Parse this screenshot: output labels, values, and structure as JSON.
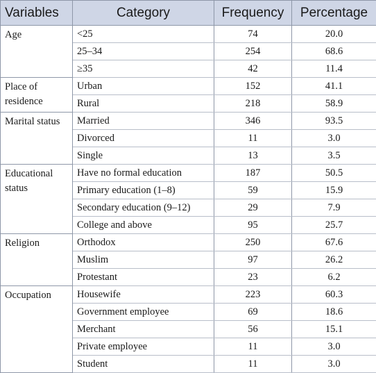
{
  "headers": [
    "Variables",
    "Category",
    "Frequency",
    "Percentage"
  ],
  "groups": [
    {
      "variable": "Age",
      "rows": [
        {
          "category": "<25",
          "frequency": "74",
          "percentage": "20.0"
        },
        {
          "category": "25–34",
          "frequency": "254",
          "percentage": "68.6"
        },
        {
          "category": "≥35",
          "frequency": "42",
          "percentage": "11.4"
        }
      ]
    },
    {
      "variable": "Place of residence",
      "rows": [
        {
          "category": "Urban",
          "frequency": "152",
          "percentage": "41.1"
        },
        {
          "category": "Rural",
          "frequency": "218",
          "percentage": "58.9"
        }
      ]
    },
    {
      "variable": "Marital status",
      "rows": [
        {
          "category": "Married",
          "frequency": "346",
          "percentage": "93.5"
        },
        {
          "category": "Divorced",
          "frequency": "11",
          "percentage": "3.0"
        },
        {
          "category": "Single",
          "frequency": "13",
          "percentage": "3.5"
        }
      ]
    },
    {
      "variable": "Educational status",
      "rows": [
        {
          "category": "Have no formal education",
          "frequency": "187",
          "percentage": "50.5"
        },
        {
          "category": "Primary education (1–8)",
          "frequency": "59",
          "percentage": "15.9"
        },
        {
          "category": "Secondary education (9–12)",
          "frequency": "29",
          "percentage": "7.9"
        },
        {
          "category": "College and above",
          "frequency": "95",
          "percentage": "25.7"
        }
      ]
    },
    {
      "variable": "Religion",
      "rows": [
        {
          "category": "Orthodox",
          "frequency": "250",
          "percentage": "67.6"
        },
        {
          "category": "Muslim",
          "frequency": "97",
          "percentage": "26.2"
        },
        {
          "category": "Protestant",
          "frequency": "23",
          "percentage": "6.2"
        }
      ]
    },
    {
      "variable": "Occupation",
      "rows": [
        {
          "category": "Housewife",
          "frequency": "223",
          "percentage": "60.3"
        },
        {
          "category": "Government employee",
          "frequency": "69",
          "percentage": "18.6"
        },
        {
          "category": "Merchant",
          "frequency": "56",
          "percentage": "15.1"
        },
        {
          "category": "Private employee",
          "frequency": "11",
          "percentage": "3.0"
        },
        {
          "category": "Student",
          "frequency": "11",
          "percentage": "3.0"
        }
      ]
    }
  ]
}
